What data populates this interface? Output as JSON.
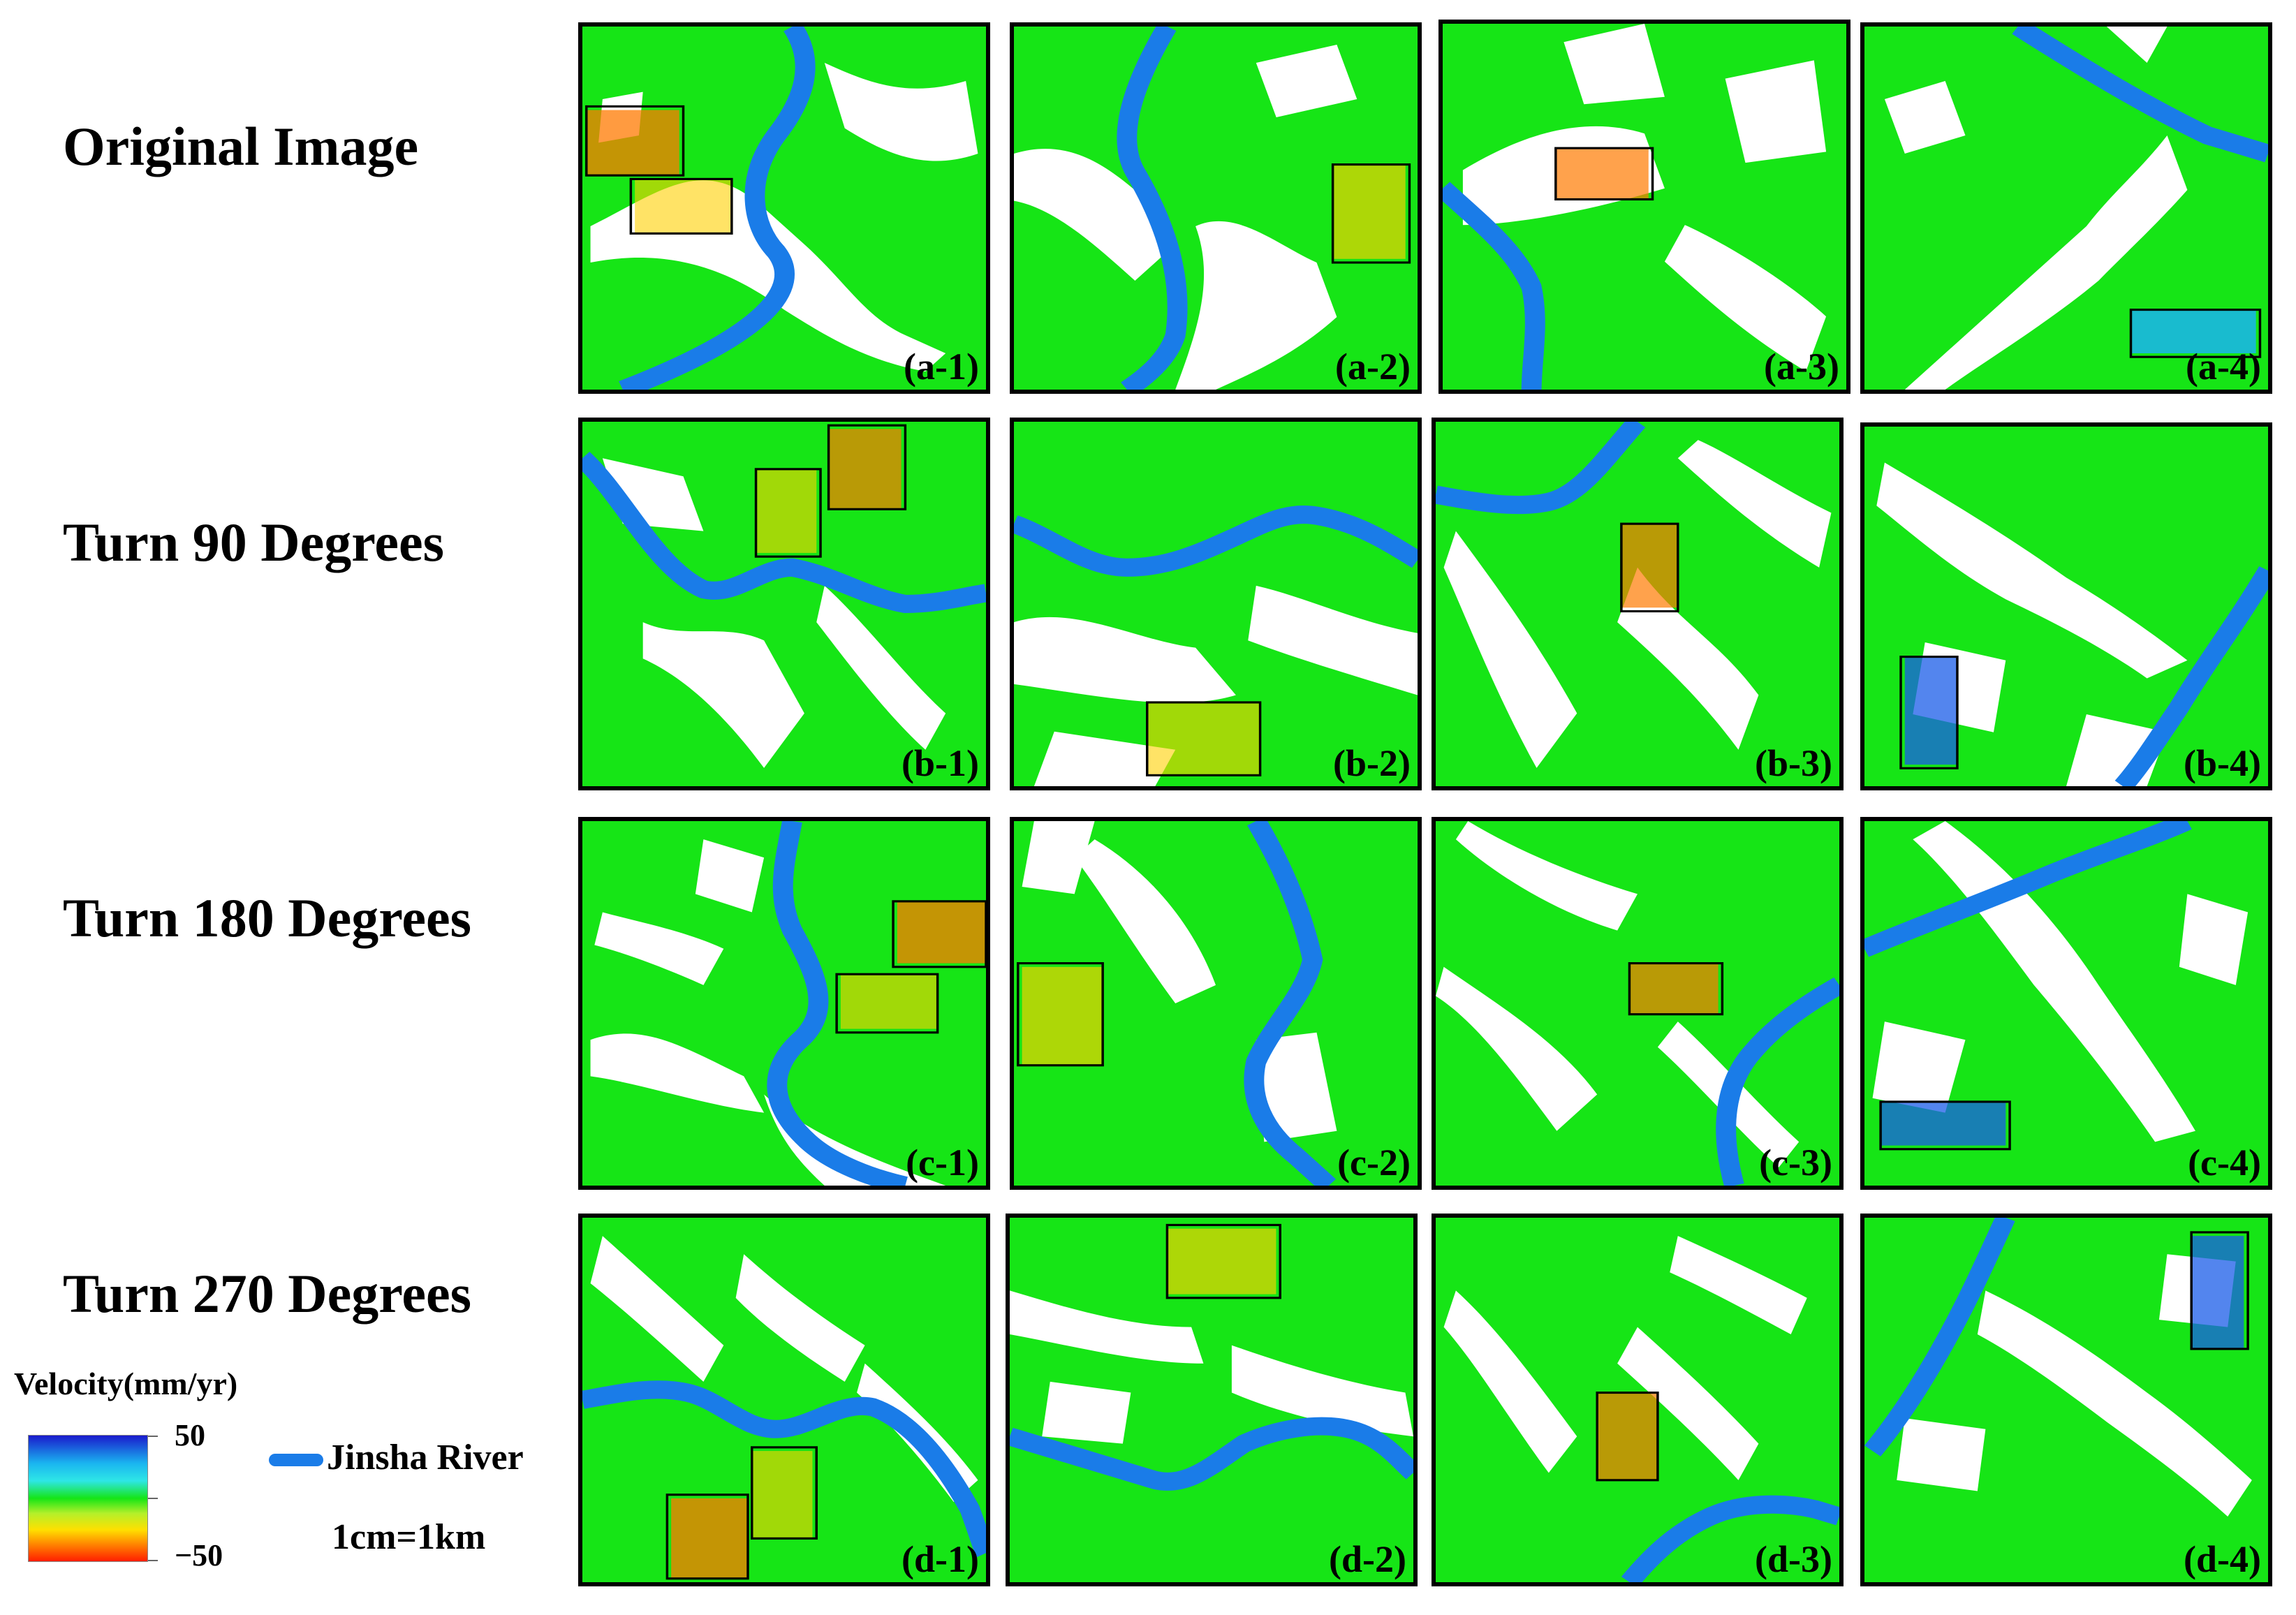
{
  "rows": [
    {
      "label": "Original Image"
    },
    {
      "label": "Turn 90 Degrees"
    },
    {
      "label": "Turn 180 Degrees"
    },
    {
      "label": "Turn 270 Degrees"
    }
  ],
  "panels": [
    {
      "id": "(a-1)"
    },
    {
      "id": "(a-2)"
    },
    {
      "id": "(a-3)"
    },
    {
      "id": "(a-4)"
    },
    {
      "id": "(b-1)"
    },
    {
      "id": "(b-2)"
    },
    {
      "id": "(b-3)"
    },
    {
      "id": "(b-4)"
    },
    {
      "id": "(c-1)"
    },
    {
      "id": "(c-2)"
    },
    {
      "id": "(c-3)"
    },
    {
      "id": "(c-4)"
    },
    {
      "id": "(d-1)"
    },
    {
      "id": "(d-2)"
    },
    {
      "id": "(d-3)"
    },
    {
      "id": "(d-4)"
    }
  ],
  "legend": {
    "title": "Velocity(mm/yr)",
    "max_label": "50",
    "min_label": "−50",
    "river_label": "Jinsha River",
    "scale_label": "1cm=1km"
  },
  "colors": {
    "background_green": "#16e516",
    "river_blue": "#1a7ce8",
    "frame": "#000000"
  }
}
